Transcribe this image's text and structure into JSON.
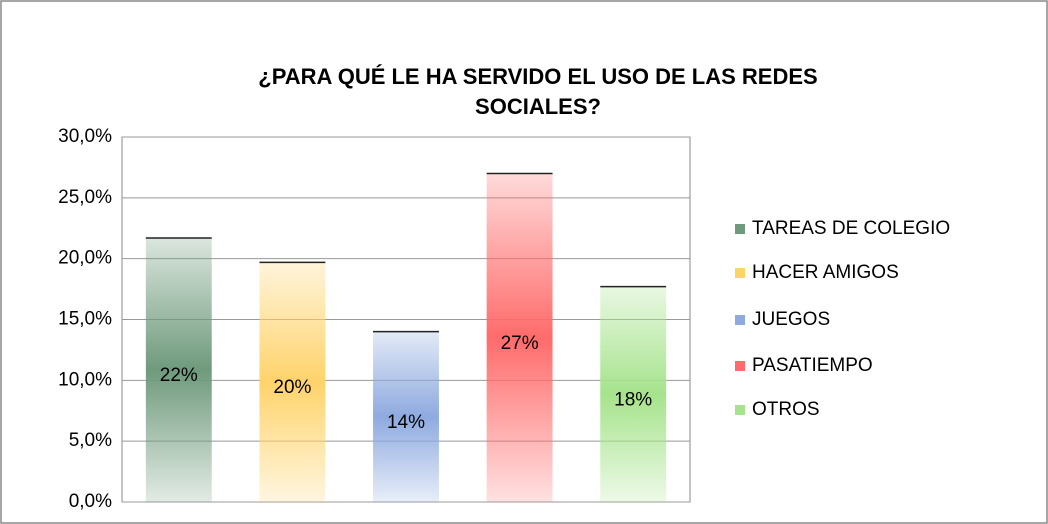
{
  "chart_data": {
    "type": "bar",
    "title": [
      "¿PARA QUÉ LE HA SERVIDO EL USO DE LAS REDES",
      "SOCIALES?"
    ],
    "categories": [
      "TAREAS DE COLEGIO",
      "HACER AMIGOS",
      "JUEGOS",
      "PASATIEMPO",
      "OTROS"
    ],
    "values": [
      21.7,
      19.7,
      14.0,
      27.0,
      17.7
    ],
    "value_labels": [
      "22%",
      "20%",
      "14%",
      "27%",
      "18%"
    ],
    "colors": [
      "#6f9a7c",
      "#ffd36b",
      "#8eaadf",
      "#ff6b6b",
      "#a6e38c"
    ],
    "ylim": [
      0,
      30
    ],
    "yticks": [
      {
        "value": 0,
        "label": "0,0%"
      },
      {
        "value": 5,
        "label": "5,0%"
      },
      {
        "value": 10,
        "label": "10,0%"
      },
      {
        "value": 15,
        "label": "15,0%"
      },
      {
        "value": 20,
        "label": "20,0%"
      },
      {
        "value": 25,
        "label": "25,0%"
      },
      {
        "value": 30,
        "label": "30,0%"
      }
    ],
    "grid": true,
    "legend": "right"
  }
}
